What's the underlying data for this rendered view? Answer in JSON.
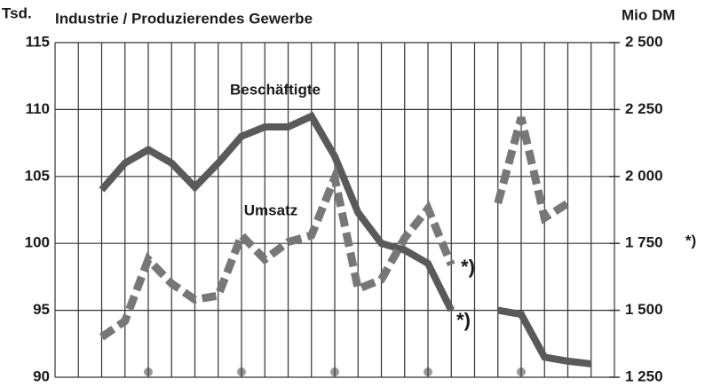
{
  "chart_data": {
    "type": "line",
    "title": "Industrie / Produzierendes Gewerbe",
    "ylabel": "Tsd.",
    "y2label": "Mio DM",
    "categories": [
      null,
      null,
      null,
      null,
      null,
      null,
      null,
      null,
      null,
      null,
      null,
      null,
      null,
      null,
      null,
      null,
      null,
      null,
      null,
      null,
      null,
      null,
      null,
      null,
      null
    ],
    "series": [
      {
        "name": "Beschäftigte",
        "color": "#5a5a5a",
        "style": "solid",
        "values": [
          null,
          null,
          104,
          106,
          107,
          106,
          104.2,
          106,
          108,
          108.7,
          108.7,
          109.5,
          106.5,
          102.3,
          100,
          99.5,
          98.5,
          95,
          null,
          95,
          94.7,
          91.5,
          91.2,
          91,
          null
        ]
      },
      {
        "name": "Umsatz",
        "color": "#777777",
        "style": "dashed",
        "axis": "y2",
        "values": [
          null,
          null,
          1400,
          1460,
          1690,
          1600,
          1540,
          1555,
          1780,
          1690,
          1755,
          1780,
          1995,
          1580,
          1615,
          1770,
          1880,
          1670,
          null,
          1900,
          2220,
          1845,
          1900,
          null,
          null
        ]
      }
    ],
    "annotations": [
      "*)",
      "*)",
      "*)"
    ],
    "ylim": [
      90,
      115
    ],
    "yticks": [
      90,
      95,
      100,
      105,
      110,
      115
    ],
    "y2lim": [
      1250,
      2500
    ],
    "y2ticks": [
      {
        "value": 1250,
        "label": "1 250"
      },
      {
        "value": 1500,
        "label": "1 500"
      },
      {
        "value": 1750,
        "label": "1 750"
      },
      {
        "value": 2000,
        "label": "2 000"
      },
      {
        "value": 2250,
        "label": "2 250"
      },
      {
        "value": 2500,
        "label": "2 500"
      }
    ],
    "grid": true
  }
}
